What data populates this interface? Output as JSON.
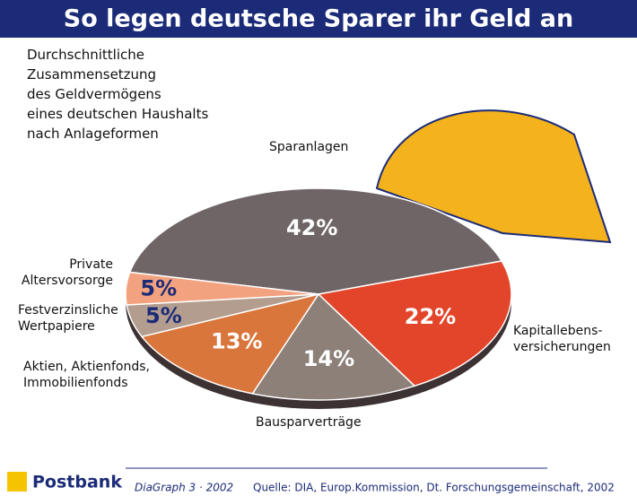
{
  "chart_data": {
    "type": "pie",
    "title": "So legen deutsche Sparer ihr Geld an",
    "subtitle": "Durchschnittliche\nZusammensetzung\ndes Geldvermögens\neines deutschen Haushalts\nnach Anlageformen",
    "categories": [
      "Sparanlagen",
      "Kapitallebens-\nversicherungen",
      "Bausparverträge",
      "Aktien, Aktienfonds,\nImmobilienfonds",
      "Festverzinsliche\nWertpapiere",
      "Private\nAltersvorsorge"
    ],
    "values": [
      42,
      22,
      14,
      13,
      5,
      5
    ],
    "value_labels": [
      "42%",
      "22%",
      "14%",
      "13%",
      "5%",
      "5%"
    ],
    "colors": [
      "#6f6567",
      "#e2452a",
      "#8c8079",
      "#d9763c",
      "#b39d8f",
      "#f2a27f"
    ],
    "brand": "Postbank",
    "series_label": "DiaGraph 3 · 2002",
    "source": "Quelle: DIA, Europ.Kommission, Dt. Forschungsgemeinschaft, 2002"
  }
}
